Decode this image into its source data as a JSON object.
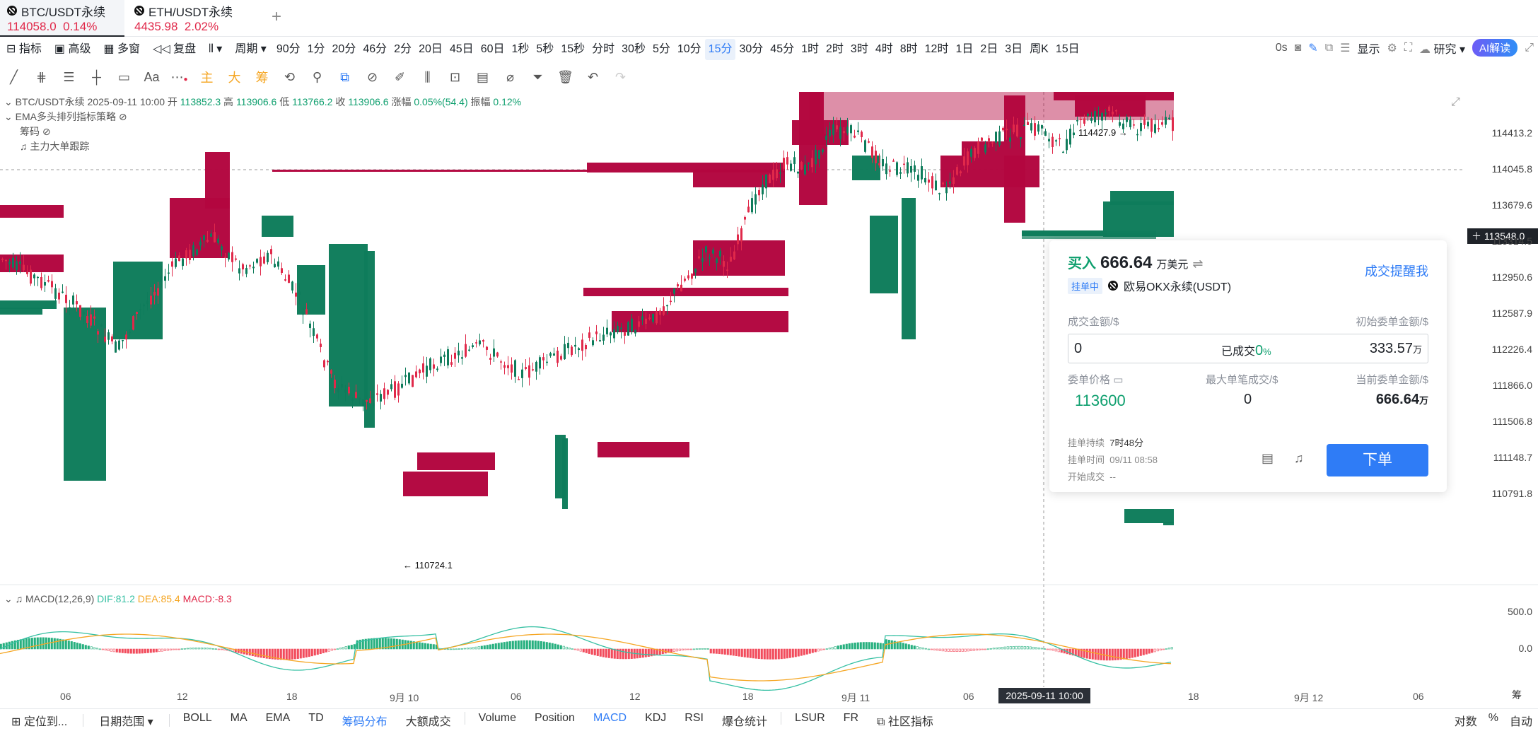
{
  "tabs": [
    {
      "symbol": "BTC/USDT永续",
      "price": "114058.0",
      "change": "0.14%"
    },
    {
      "symbol": "ETH/USDT永续",
      "price": "4435.98",
      "change": "2.02%"
    }
  ],
  "add_tab": "+",
  "toolbar": {
    "indicator": "指标",
    "advanced": "高级",
    "multi_window": "多窗",
    "replay": "复盘",
    "period": "周期",
    "intervals": [
      "90分",
      "1分",
      "20分",
      "46分",
      "2分",
      "20日",
      "45日",
      "60日",
      "1秒",
      "5秒",
      "15秒",
      "分时",
      "30秒",
      "5分",
      "10分",
      "15分",
      "30分",
      "45分",
      "1时",
      "2时",
      "3时",
      "4时",
      "8时",
      "12时",
      "1日",
      "2日",
      "3日",
      "周K",
      "15日"
    ],
    "selected_interval": "15分",
    "countdown": "0s",
    "display": "显示",
    "research": "研究",
    "ai": "AI解读"
  },
  "drawing_tools": {
    "text_tool": "Aa",
    "main": "主",
    "big": "大",
    "chips": "筹"
  },
  "chart": {
    "legend_symbol": "BTC/USDT永续",
    "legend_time": "2025-09-11 10:00",
    "open_label": "开",
    "open": "113852.3",
    "high_label": "高",
    "high": "113906.6",
    "low_label": "低",
    "low": "113766.2",
    "close_label": "收",
    "close": "113906.6",
    "chg_label": "涨幅",
    "chg": "0.05%(54.4)",
    "amp_label": "振幅",
    "amp": "0.12%",
    "strategy": "EMA多头排列指标策略",
    "chips": "筹码",
    "whale": "主力大单跟踪",
    "price_axis": [
      "114413.2",
      "114045.8",
      "113679.6",
      "113314.5",
      "112950.6",
      "112587.9",
      "112226.4",
      "111866.0",
      "111506.8",
      "111148.7",
      "110791.8"
    ],
    "current_price": "113548.0",
    "high_marker": "114427.9",
    "low_marker": "110724.1",
    "macd_label": "MACD(12,26,9)",
    "dif": "DIF:81.2",
    "dea": "DEA:85.4",
    "macd": "MACD:-8.3",
    "macd_axis": [
      "500.0",
      "0.0"
    ],
    "x_axis": [
      "06",
      "12",
      "18",
      "9月 10",
      "06",
      "12",
      "18",
      "9月 11",
      "06",
      "18",
      "9月 12",
      "06"
    ],
    "crosshair_time": "2025-09-11 10:00",
    "chips_side": "筹",
    "colors": {
      "up": "#0e7c5b",
      "down": "#b3063f",
      "dif": "#36c0a3",
      "dea": "#f5a623"
    }
  },
  "order": {
    "side": "买入",
    "amount": "666.64",
    "amount_unit": "万美元",
    "status": "挂单中",
    "exchange": "欧易OKX永续(USDT)",
    "alert": "成交提醒我",
    "filled_amount_label": "成交金额/$",
    "initial_amount_label": "初始委单金额/$",
    "filled_value": "0",
    "filled_pct_label": "已成交",
    "filled_pct": "0",
    "filled_pct_unit": "%",
    "initial_value": "333.57",
    "initial_unit": "万",
    "price_label": "委单价格",
    "max_fill_label": "最大单笔成交/$",
    "current_amount_label": "当前委单金额/$",
    "price": "113600",
    "max_fill": "0",
    "current_amount": "666.64",
    "current_unit": "万",
    "duration_label": "挂单持续",
    "duration": "7时48分",
    "time_label": "挂单时间",
    "time": "09/11 08:58",
    "start_label": "开始成交",
    "start": "--",
    "button": "下单"
  },
  "bottom": {
    "locate": "定位到...",
    "date_range": "日期范围",
    "items": [
      "BOLL",
      "MA",
      "EMA",
      "TD",
      "筹码分布",
      "大额成交",
      "Volume",
      "Position",
      "MACD",
      "KDJ",
      "RSI",
      "爆仓统计",
      "LSUR",
      "FR",
      "社区指标"
    ],
    "log": "对数",
    "pct": "%",
    "auto": "自动"
  }
}
